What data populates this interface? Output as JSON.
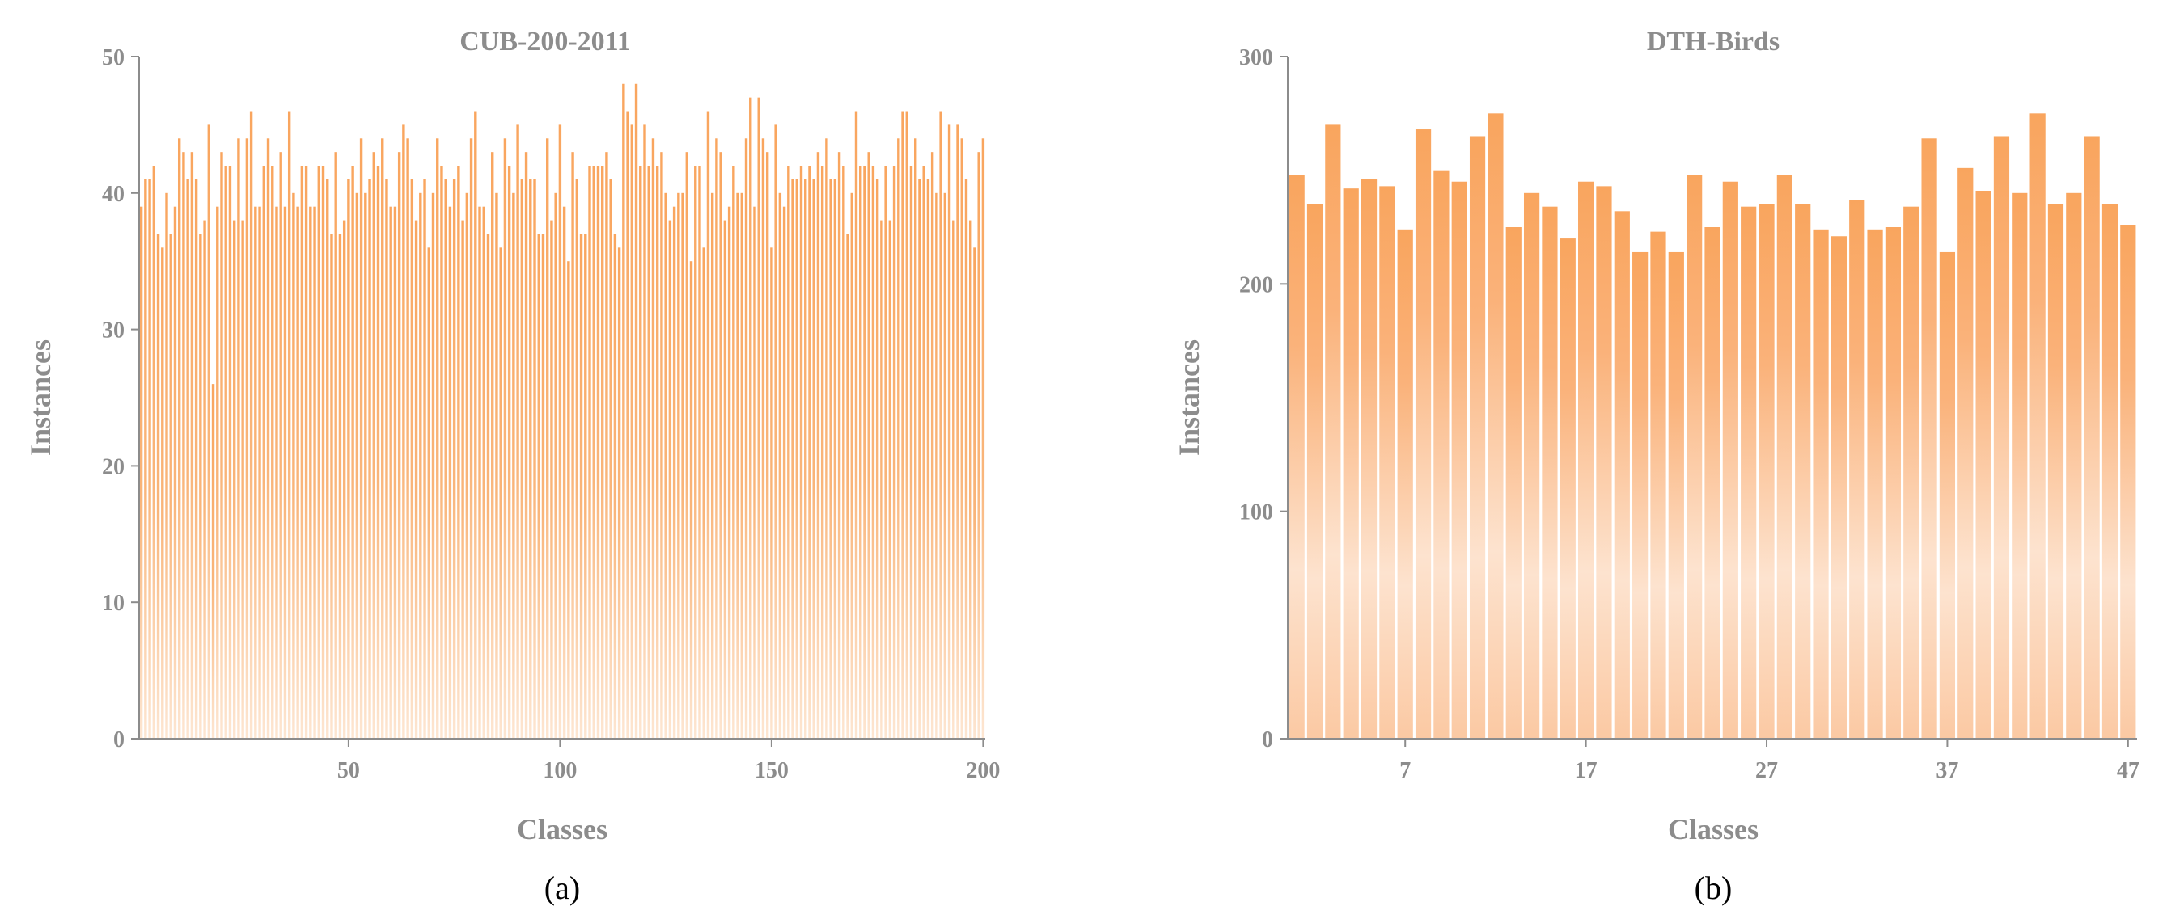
{
  "chart_data": [
    {
      "type": "bar",
      "title": "CUB-200-2011",
      "xlabel": "Classes",
      "ylabel": "Instances",
      "caption": "(a)",
      "xlim": [
        1,
        200
      ],
      "ylim": [
        0,
        50
      ],
      "yticks": [
        0,
        10,
        20,
        30,
        40,
        50
      ],
      "xticks": [
        50,
        100,
        150,
        200
      ],
      "grid": false,
      "x": [
        1,
        2,
        3,
        4,
        5,
        6,
        7,
        8,
        9,
        10,
        11,
        12,
        13,
        14,
        15,
        16,
        17,
        18,
        19,
        20,
        21,
        22,
        23,
        24,
        25,
        26,
        27,
        28,
        29,
        30,
        31,
        32,
        33,
        34,
        35,
        36,
        37,
        38,
        39,
        40,
        41,
        42,
        43,
        44,
        45,
        46,
        47,
        48,
        49,
        50,
        51,
        52,
        53,
        54,
        55,
        56,
        57,
        58,
        59,
        60,
        61,
        62,
        63,
        64,
        65,
        66,
        67,
        68,
        69,
        70,
        71,
        72,
        73,
        74,
        75,
        76,
        77,
        78,
        79,
        80,
        81,
        82,
        83,
        84,
        85,
        86,
        87,
        88,
        89,
        90,
        91,
        92,
        93,
        94,
        95,
        96,
        97,
        98,
        99,
        100,
        101,
        102,
        103,
        104,
        105,
        106,
        107,
        108,
        109,
        110,
        111,
        112,
        113,
        114,
        115,
        116,
        117,
        118,
        119,
        120,
        121,
        122,
        123,
        124,
        125,
        126,
        127,
        128,
        129,
        130,
        131,
        132,
        133,
        134,
        135,
        136,
        137,
        138,
        139,
        140,
        141,
        142,
        143,
        144,
        145,
        146,
        147,
        148,
        149,
        150,
        151,
        152,
        153,
        154,
        155,
        156,
        157,
        158,
        159,
        160,
        161,
        162,
        163,
        164,
        165,
        166,
        167,
        168,
        169,
        170,
        171,
        172,
        173,
        174,
        175,
        176,
        177,
        178,
        179,
        180,
        181,
        182,
        183,
        184,
        185,
        186,
        187,
        188,
        189,
        190,
        191,
        192,
        193,
        194,
        195,
        196,
        197,
        198,
        199,
        200
      ],
      "values": [
        39,
        41,
        41,
        42,
        37,
        36,
        40,
        37,
        39,
        44,
        43,
        41,
        43,
        41,
        37,
        38,
        45,
        26,
        39,
        43,
        42,
        42,
        38,
        44,
        38,
        44,
        46,
        39,
        39,
        42,
        44,
        42,
        39,
        43,
        39,
        46,
        40,
        39,
        42,
        42,
        39,
        39,
        42,
        42,
        41,
        37,
        43,
        37,
        38,
        41,
        42,
        40,
        44,
        40,
        41,
        43,
        42,
        44,
        41,
        39,
        39,
        43,
        45,
        44,
        41,
        38,
        40,
        41,
        36,
        40,
        44,
        42,
        41,
        39,
        41,
        42,
        38,
        40,
        44,
        46,
        39,
        39,
        37,
        43,
        40,
        36,
        44,
        42,
        40,
        45,
        41,
        43,
        41,
        41,
        37,
        37,
        44,
        38,
        40,
        45,
        39,
        35,
        43,
        41,
        37,
        37,
        42,
        42,
        42,
        42,
        43,
        41,
        37,
        36,
        48,
        46,
        45,
        48,
        42,
        45,
        42,
        44,
        42,
        43,
        40,
        38,
        39,
        40,
        40,
        43,
        35,
        42,
        42,
        36,
        46,
        40,
        44,
        43,
        38,
        39,
        42,
        40,
        40,
        44,
        47,
        39,
        47,
        44,
        43,
        36,
        45,
        40,
        39,
        42,
        41,
        41,
        42,
        41,
        42,
        41,
        43,
        42,
        44,
        41,
        41,
        43,
        42,
        37,
        40,
        46,
        42,
        42,
        43,
        42,
        41,
        38,
        42,
        38,
        42,
        44,
        46,
        46,
        42,
        44,
        41,
        42,
        41,
        43,
        40,
        46,
        40,
        45,
        38,
        45,
        44,
        41,
        38,
        36,
        43,
        44
      ]
    },
    {
      "type": "bar",
      "title": "DTH-Birds",
      "xlabel": "Classes",
      "ylabel": "Instances",
      "caption": "(b)",
      "xlim": [
        1,
        47
      ],
      "ylim": [
        0,
        300
      ],
      "yticks": [
        0,
        100,
        200,
        300
      ],
      "xticks": [
        7,
        17,
        27,
        37,
        47
      ],
      "grid": false,
      "x": [
        1,
        2,
        3,
        4,
        5,
        6,
        7,
        8,
        9,
        10,
        11,
        12,
        13,
        14,
        15,
        16,
        17,
        18,
        19,
        20,
        21,
        22,
        23,
        24,
        25,
        26,
        27,
        28,
        29,
        30,
        31,
        32,
        33,
        34,
        35,
        36,
        37,
        38,
        39,
        40,
        41,
        42,
        43,
        44,
        45,
        46,
        47
      ],
      "values": [
        248,
        235,
        270,
        242,
        246,
        243,
        224,
        268,
        250,
        245,
        265,
        275,
        225,
        240,
        234,
        220,
        245,
        243,
        232,
        214,
        223,
        214,
        248,
        225,
        245,
        234,
        235,
        248,
        235,
        224,
        221,
        237,
        224,
        225,
        234,
        264,
        214,
        251,
        241,
        265,
        240,
        275,
        235,
        240,
        265,
        235,
        226
      ]
    }
  ]
}
